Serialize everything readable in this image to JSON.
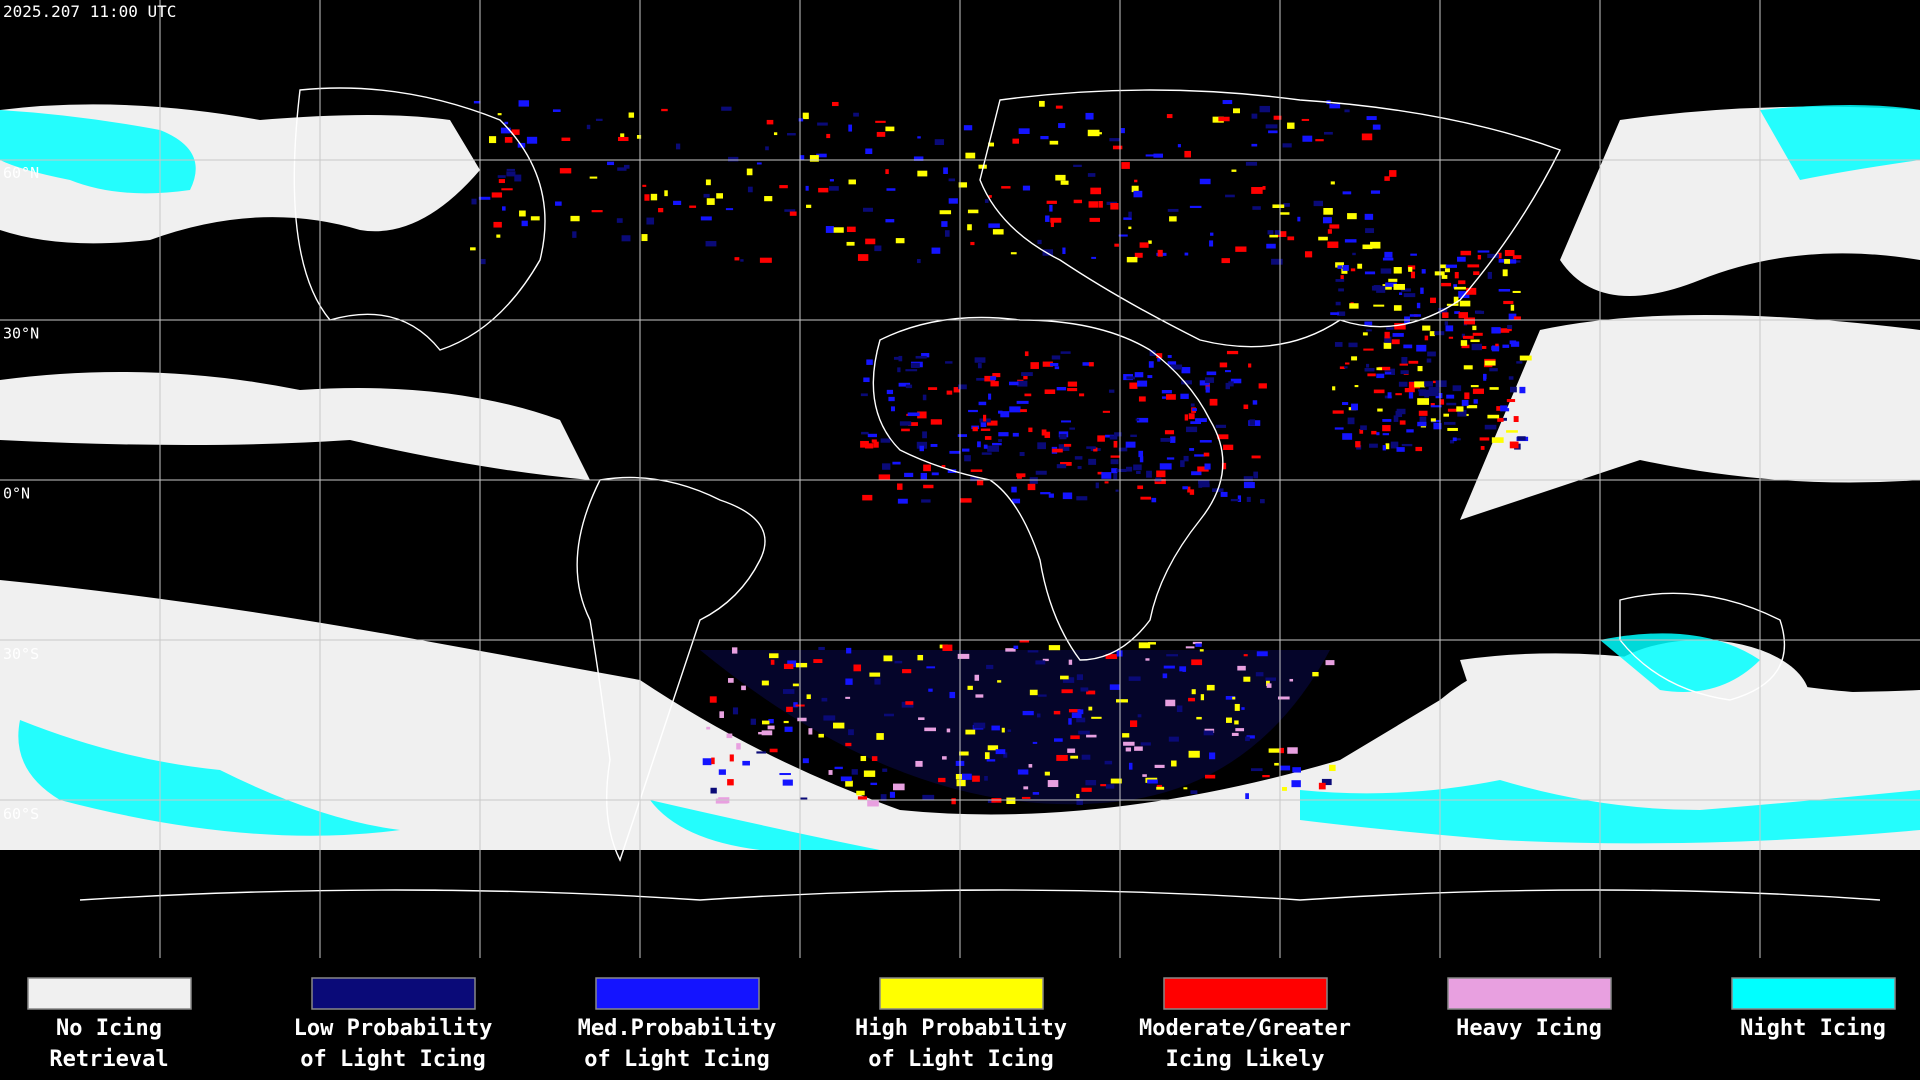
{
  "header": {
    "timestamp": "2025.207 11:00 UTC"
  },
  "map": {
    "latitude_labels": [
      "60°N",
      "30°N",
      "0°N",
      "30°S",
      "60°S"
    ]
  },
  "legend": {
    "items": [
      {
        "line1": "No Icing",
        "line2": "Retrieval",
        "color": "#f0f0f0"
      },
      {
        "line1": "Low Probability",
        "line2": "of Light Icing",
        "color": "#0a0a78"
      },
      {
        "line1": "Med.Probability",
        "line2": "of Light Icing",
        "color": "#1414ff"
      },
      {
        "line1": "High Probability",
        "line2": "of Light Icing",
        "color": "#ffff00"
      },
      {
        "line1": "Moderate/Greater",
        "line2": "Icing Likely",
        "color": "#ff0000"
      },
      {
        "line1": "Heavy Icing",
        "line2": "",
        "color": "#e8a0e0"
      },
      {
        "line1": "Night Icing",
        "line2": "",
        "color": "#00ffff"
      }
    ]
  }
}
